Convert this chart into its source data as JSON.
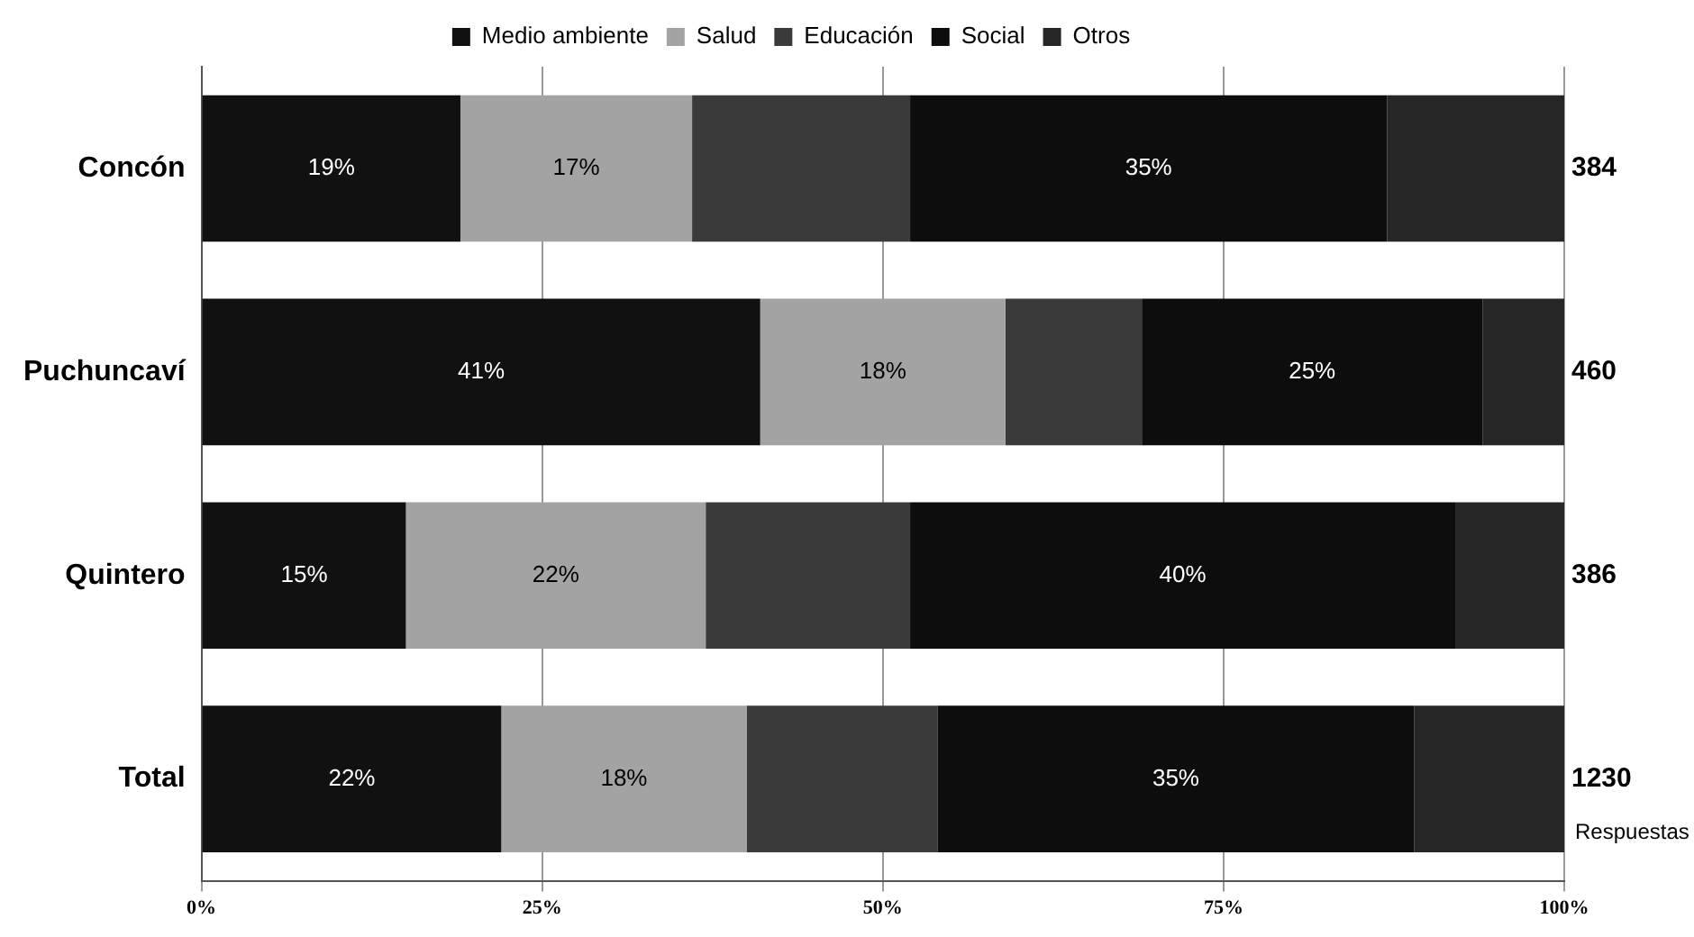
{
  "chart_data": {
    "type": "bar",
    "orientation": "horizontal",
    "stacked": true,
    "categories": [
      "Concón",
      "Puchuncaví",
      "Quintero",
      "Total"
    ],
    "series": [
      {
        "name": "Medio ambiente",
        "color": "#111111",
        "values": [
          19,
          41,
          15,
          22
        ],
        "value_labels": [
          "19%",
          "41%",
          "15%",
          "22%"
        ]
      },
      {
        "name": "Salud",
        "color": "#a3a3a3",
        "values": [
          17,
          18,
          22,
          18
        ],
        "value_labels": [
          "17%",
          "18%",
          "22%",
          "18%"
        ]
      },
      {
        "name": "Educación",
        "color": "#3a3a3a",
        "values": [
          16,
          10,
          15,
          14
        ],
        "value_labels": [
          null,
          null,
          null,
          null
        ]
      },
      {
        "name": "Social",
        "color": "#0d0d0d",
        "values": [
          35,
          25,
          40,
          35
        ],
        "value_labels": [
          "35%",
          "25%",
          "40%",
          "35%"
        ]
      },
      {
        "name": "Otros",
        "color": "#262626",
        "values": [
          13,
          6,
          8,
          11
        ],
        "value_labels": [
          null,
          null,
          null,
          null
        ]
      }
    ],
    "xlim": [
      0,
      100
    ],
    "xticks": [
      {
        "value": 0,
        "label": "0%"
      },
      {
        "value": 25,
        "label": "25%"
      },
      {
        "value": 50,
        "label": "50%"
      },
      {
        "value": 75,
        "label": "75%"
      },
      {
        "value": 100,
        "label": "100%"
      }
    ],
    "grid": "x",
    "legend": "top",
    "annotations": [
      "384",
      "460",
      "386",
      "1230",
      "Respuestas"
    ]
  }
}
